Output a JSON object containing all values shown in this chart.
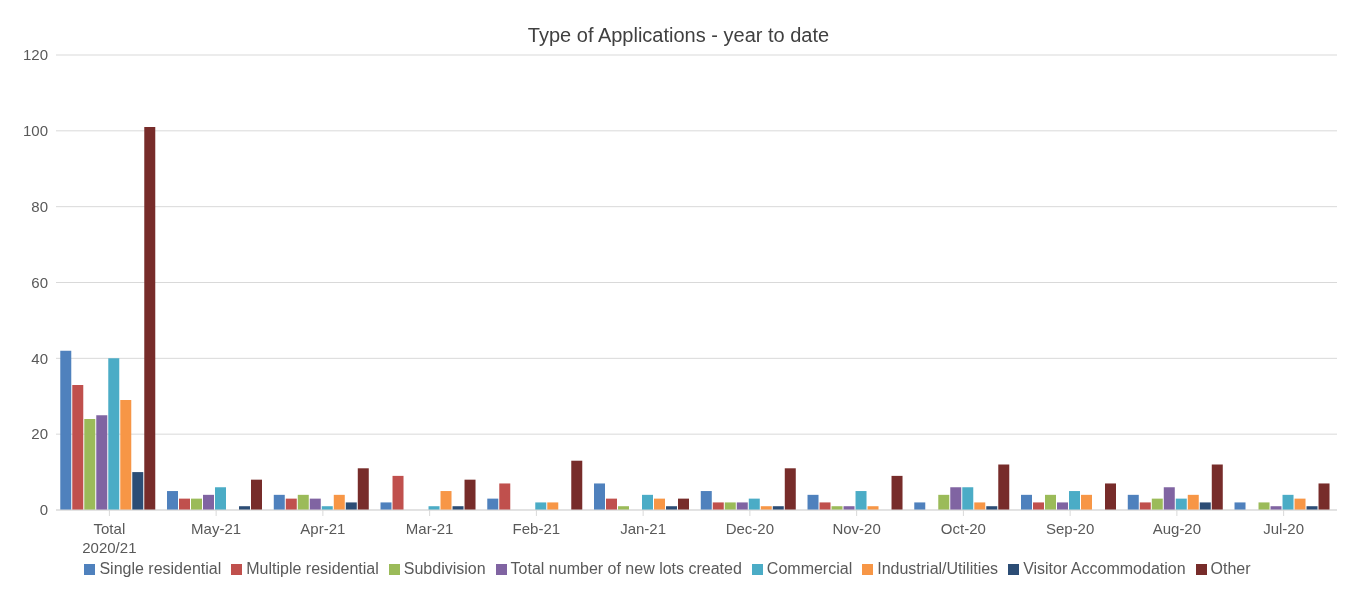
{
  "chart_data": {
    "type": "bar",
    "title": "Type of Applications - year to date",
    "categories": [
      "Total 2020/21",
      "May-21",
      "Apr-21",
      "Mar-21",
      "Feb-21",
      "Jan-21",
      "Dec-20",
      "Nov-20",
      "Oct-20",
      "Sep-20",
      "Aug-20",
      "Jul-20"
    ],
    "series": [
      {
        "name": "Single residential",
        "color": "#4f81bd",
        "values": [
          42,
          5,
          4,
          2,
          3,
          7,
          5,
          4,
          2,
          4,
          4,
          2
        ]
      },
      {
        "name": "Multiple residential",
        "color": "#c0504d",
        "values": [
          33,
          3,
          3,
          9,
          7,
          3,
          2,
          2,
          0,
          2,
          2,
          0
        ]
      },
      {
        "name": "Subdivision",
        "color": "#9bbb59",
        "values": [
          24,
          3,
          4,
          0,
          0,
          1,
          2,
          1,
          4,
          4,
          3,
          2
        ]
      },
      {
        "name": "Total number of new lots created",
        "color": "#8064a2",
        "values": [
          25,
          4,
          3,
          0,
          0,
          0,
          2,
          1,
          6,
          2,
          6,
          1
        ]
      },
      {
        "name": "Commercial",
        "color": "#4bacc6",
        "values": [
          40,
          6,
          1,
          1,
          2,
          4,
          3,
          5,
          6,
          5,
          3,
          4
        ]
      },
      {
        "name": "Industrial/Utilities",
        "color": "#f79646",
        "values": [
          29,
          0,
          4,
          5,
          2,
          3,
          1,
          1,
          2,
          4,
          4,
          3
        ]
      },
      {
        "name": "Visitor Accommodation",
        "color": "#2c4d75",
        "values": [
          10,
          1,
          2,
          1,
          0,
          1,
          1,
          0,
          1,
          0,
          2,
          1
        ]
      },
      {
        "name": "Other",
        "color": "#772c2a",
        "values": [
          101,
          8,
          11,
          8,
          13,
          3,
          11,
          9,
          12,
          7,
          12,
          7
        ]
      }
    ],
    "ylim": [
      0,
      120
    ],
    "yticks": [
      0,
      20,
      40,
      60,
      80,
      100,
      120
    ],
    "grid": "y",
    "legend": "bottom"
  }
}
